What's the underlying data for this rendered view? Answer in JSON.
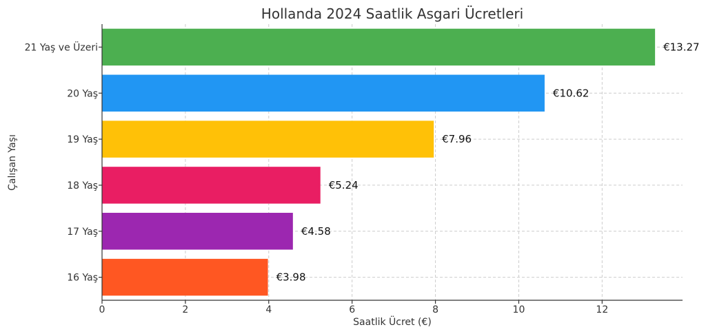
{
  "chart_data": {
    "type": "bar",
    "orientation": "horizontal",
    "title": "Hollanda 2024 Saatlik Asgari Ücretleri",
    "xlabel": "Saatlik Ücret (€)",
    "ylabel": "Çalışan Yaşı",
    "categories": [
      "16 Yaş",
      "17 Yaş",
      "18 Yaş",
      "19 Yaş",
      "20 Yaş",
      "21 Yaş ve Üzeri"
    ],
    "values": [
      3.98,
      4.58,
      5.24,
      7.96,
      10.62,
      13.27
    ],
    "value_labels": [
      "€3.98",
      "€4.58",
      "€5.24",
      "€7.96",
      "€10.62",
      "€13.27"
    ],
    "colors": [
      "#FF5722",
      "#9C27B0",
      "#E91E63",
      "#FFC107",
      "#2196F3",
      "#4CAF50"
    ],
    "xlim": [
      0,
      13.93
    ],
    "xticks": [
      0,
      2,
      4,
      6,
      8,
      10,
      12
    ],
    "xtick_labels": [
      "0",
      "2",
      "4",
      "6",
      "8",
      "10",
      "12"
    ],
    "grid": true
  }
}
